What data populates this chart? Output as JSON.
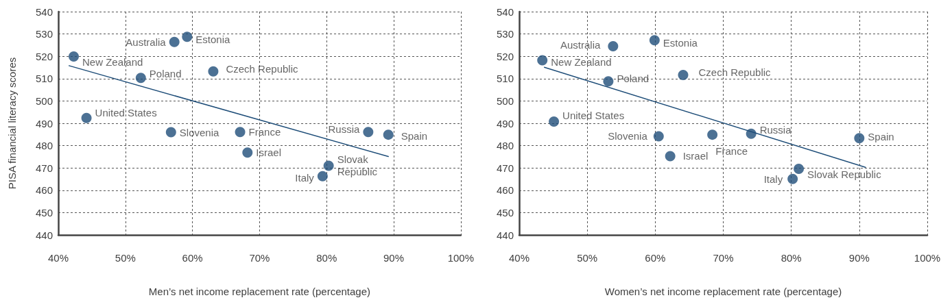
{
  "chart_data": [
    {
      "type": "scatter",
      "xlabel": "Men’s net income replacement rate (percentage)",
      "ylabel": "PISA financial literacy scores",
      "xlim": [
        40,
        100
      ],
      "ylim": [
        440,
        540
      ],
      "xticks": [
        {
          "value": 40,
          "label": "40%"
        },
        {
          "value": 50,
          "label": "50%"
        },
        {
          "value": 60,
          "label": "60%"
        },
        {
          "value": 70,
          "label": "70%"
        },
        {
          "value": 80,
          "label": "80%"
        },
        {
          "value": 90,
          "label": "90%"
        },
        {
          "value": 100,
          "label": "100%"
        }
      ],
      "yticks": [
        440,
        450,
        460,
        470,
        480,
        490,
        500,
        510,
        520,
        530,
        540
      ],
      "grid": true,
      "marker": "circle",
      "series": [
        {
          "name": "New Zealand",
          "color": "#1f4e79",
          "x": [
            42.3
          ],
          "values": [
            519.9
          ]
        },
        {
          "name": "Australia",
          "color": "#1f4e79",
          "x": [
            57.3
          ],
          "values": [
            526.4
          ]
        },
        {
          "name": "Estonia",
          "color": "#1f4e79",
          "x": [
            59.2
          ],
          "values": [
            528.7
          ]
        },
        {
          "name": "Poland",
          "color": "#1f4e79",
          "x": [
            52.3
          ],
          "values": [
            510.3
          ]
        },
        {
          "name": "Czech Republic",
          "color": "#1f4e79",
          "x": [
            63.1
          ],
          "values": [
            513.2
          ]
        },
        {
          "name": "United States",
          "color": "#1f4e79",
          "x": [
            44.2
          ],
          "values": [
            492.4
          ]
        },
        {
          "name": "Slovenia",
          "color": "#1f4e79",
          "x": [
            56.8
          ],
          "values": [
            486.0
          ]
        },
        {
          "name": "France",
          "color": "#1f4e79",
          "x": [
            67.1
          ],
          "values": [
            486.1
          ]
        },
        {
          "name": "Israel",
          "color": "#1f4e79",
          "x": [
            68.2
          ],
          "values": [
            476.9
          ]
        },
        {
          "name": "Russia",
          "color": "#1f4e79",
          "x": [
            86.2
          ],
          "values": [
            486.1
          ]
        },
        {
          "name": "Spain",
          "color": "#1f4e79",
          "x": [
            89.2
          ],
          "values": [
            484.9
          ]
        },
        {
          "name": "Slovak Republic",
          "color": "#1f4e79",
          "x": [
            80.3
          ],
          "values": [
            471.0
          ]
        },
        {
          "name": "Italy",
          "color": "#1f4e79",
          "x": [
            79.4
          ],
          "values": [
            466.3
          ]
        },
        {
          "type": "line",
          "marker": "none",
          "color": "#1f4e79",
          "x": [
            41.6,
            89.2
          ],
          "values": [
            515.8,
            475.1
          ]
        }
      ]
    },
    {
      "type": "scatter",
      "xlabel": "Women’s net income replacement rate (percentage)",
      "xlim": [
        40,
        100
      ],
      "ylim": [
        440,
        540
      ],
      "xticks": [
        {
          "value": 40,
          "label": "40%"
        },
        {
          "value": 50,
          "label": "50%"
        },
        {
          "value": 60,
          "label": "60%"
        },
        {
          "value": 70,
          "label": "70%"
        },
        {
          "value": 80,
          "label": "80%"
        },
        {
          "value": 90,
          "label": "90%"
        },
        {
          "value": 100,
          "label": "100%"
        }
      ],
      "yticks": [
        440,
        450,
        460,
        470,
        480,
        490,
        500,
        510,
        520,
        530,
        540
      ],
      "grid": true,
      "marker": "circle",
      "series": [
        {
          "name": "New Zealand",
          "color": "#1f4e79",
          "x": [
            43.4
          ],
          "values": [
            518.2
          ]
        },
        {
          "name": "Australia",
          "color": "#1f4e79",
          "x": [
            53.8
          ],
          "values": [
            524.5
          ]
        },
        {
          "name": "Estonia",
          "color": "#1f4e79",
          "x": [
            59.9
          ],
          "values": [
            527.2
          ]
        },
        {
          "name": "Poland",
          "color": "#1f4e79",
          "x": [
            53.1
          ],
          "values": [
            508.8
          ]
        },
        {
          "name": "Czech Republic",
          "color": "#1f4e79",
          "x": [
            64.1
          ],
          "values": [
            511.6
          ]
        },
        {
          "name": "United States",
          "color": "#1f4e79",
          "x": [
            45.1
          ],
          "values": [
            490.8
          ]
        },
        {
          "name": "Slovenia",
          "color": "#1f4e79",
          "x": [
            60.5
          ],
          "values": [
            484.2
          ]
        },
        {
          "name": "France",
          "color": "#1f4e79",
          "x": [
            68.4
          ],
          "values": [
            484.9
          ]
        },
        {
          "name": "Israel",
          "color": "#1f4e79",
          "x": [
            62.2
          ],
          "values": [
            475.3
          ]
        },
        {
          "name": "Russia",
          "color": "#1f4e79",
          "x": [
            74.1
          ],
          "values": [
            485.3
          ]
        },
        {
          "name": "Spain",
          "color": "#1f4e79",
          "x": [
            90.0
          ],
          "values": [
            483.3
          ]
        },
        {
          "name": "Slovak Republic",
          "color": "#1f4e79",
          "x": [
            81.1
          ],
          "values": [
            469.6
          ]
        },
        {
          "name": "Italy",
          "color": "#1f4e79",
          "x": [
            80.2
          ],
          "values": [
            465.1
          ]
        },
        {
          "type": "line",
          "marker": "none",
          "color": "#1f4e79",
          "x": [
            43.7,
            90.9
          ],
          "values": [
            515.1,
            470.3
          ]
        }
      ]
    }
  ]
}
